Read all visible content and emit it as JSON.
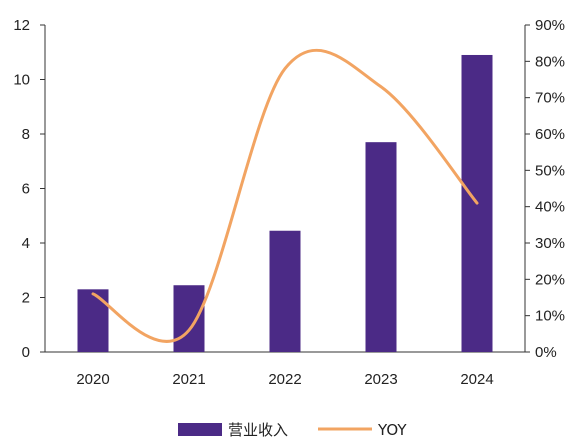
{
  "chart_data": {
    "type": "bar+line",
    "categories": [
      "2020",
      "2021",
      "2022",
      "2023",
      "2024"
    ],
    "series": [
      {
        "name": "营业收入",
        "type": "bar",
        "axis": "left",
        "color": "#4b2a86",
        "values": [
          2.3,
          2.45,
          4.45,
          7.7,
          10.9
        ]
      },
      {
        "name": "YOY",
        "type": "line",
        "axis": "right",
        "color": "#f2a462",
        "values": [
          16,
          6,
          78,
          73,
          41
        ]
      }
    ],
    "y_left": {
      "range": [
        0,
        12
      ],
      "ticks": [
        "0",
        "2",
        "4",
        "6",
        "8",
        "10",
        "12"
      ]
    },
    "y_right": {
      "range": [
        0,
        90
      ],
      "ticks": [
        "0%",
        "10%",
        "20%",
        "30%",
        "40%",
        "50%",
        "60%",
        "70%",
        "80%",
        "90%"
      ]
    },
    "legend": {
      "placement": "bottom",
      "items": [
        "营业收入",
        "YOY"
      ]
    },
    "grid": false
  }
}
